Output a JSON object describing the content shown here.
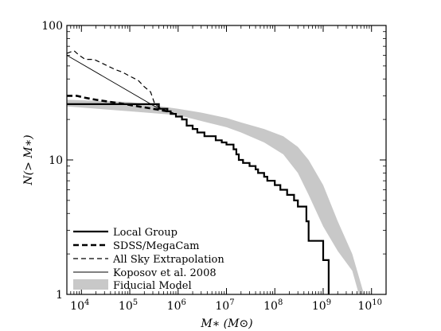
{
  "chart_data": {
    "type": "line",
    "title": "",
    "xlabel": "M∗ (M⊙)",
    "ylabel": "N(> M∗)",
    "xscale": "log",
    "yscale": "log",
    "xlim": [
      5000,
      20000000000
    ],
    "ylim": [
      1,
      100
    ],
    "grid": false,
    "legend_position": "bottom-left",
    "x_ticks": [
      {
        "value": 10000,
        "base": "10",
        "exp": "4"
      },
      {
        "value": 100000,
        "base": "10",
        "exp": "5"
      },
      {
        "value": 1000000,
        "base": "10",
        "exp": "6"
      },
      {
        "value": 10000000,
        "base": "10",
        "exp": "7"
      },
      {
        "value": 100000000,
        "base": "10",
        "exp": "8"
      },
      {
        "value": 1000000000,
        "base": "10",
        "exp": "9"
      },
      {
        "value": 10000000000,
        "base": "10",
        "exp": "10"
      }
    ],
    "y_ticks": [
      {
        "value": 1,
        "label": "1"
      },
      {
        "value": 10,
        "label": "10"
      },
      {
        "value": 100,
        "label": "100"
      }
    ],
    "series": [
      {
        "name": "Local Group",
        "style": "solid-thick",
        "color": "#000000",
        "points": [
          [
            5000,
            26
          ],
          [
            400000,
            24
          ],
          [
            600000,
            23
          ],
          [
            700000,
            22
          ],
          [
            900000,
            21
          ],
          [
            1200000,
            20
          ],
          [
            1500000,
            18
          ],
          [
            2000000,
            17
          ],
          [
            2500000,
            16
          ],
          [
            3500000,
            15
          ],
          [
            6000000,
            14
          ],
          [
            8000000,
            13.5
          ],
          [
            10000000,
            13
          ],
          [
            14000000,
            12
          ],
          [
            16000000,
            11
          ],
          [
            18000000,
            10
          ],
          [
            22000000,
            9.5
          ],
          [
            30000000,
            9
          ],
          [
            40000000,
            8.5
          ],
          [
            45000000,
            8
          ],
          [
            60000000,
            7.5
          ],
          [
            70000000,
            7
          ],
          [
            100000000,
            6.5
          ],
          [
            130000000,
            6
          ],
          [
            180000000,
            5.5
          ],
          [
            250000000,
            5
          ],
          [
            300000000,
            4.5
          ],
          [
            400000000,
            4.5
          ],
          [
            450000000,
            3.5
          ],
          [
            500000000,
            2.5
          ],
          [
            900000000,
            2.5
          ],
          [
            1000000000,
            1.8
          ],
          [
            1300000000,
            1.8
          ],
          [
            1300000000,
            1
          ]
        ]
      },
      {
        "name": "SDSS/MegaCam",
        "style": "dashed-thick",
        "color": "#000000",
        "points": [
          [
            5000,
            30
          ],
          [
            8000,
            30
          ],
          [
            12000,
            29
          ],
          [
            20000,
            28
          ],
          [
            40000,
            27
          ],
          [
            80000,
            26
          ],
          [
            150000,
            25
          ],
          [
            300000,
            24
          ],
          [
            600000,
            23
          ],
          [
            800000,
            22
          ]
        ]
      },
      {
        "name": "All Sky Extrapolation",
        "style": "dashed-thin",
        "color": "#000000",
        "points": [
          [
            5000,
            62
          ],
          [
            7000,
            65
          ],
          [
            9000,
            60
          ],
          [
            12000,
            56
          ],
          [
            18000,
            56
          ],
          [
            25000,
            53
          ],
          [
            35000,
            50
          ],
          [
            50000,
            47
          ],
          [
            70000,
            45
          ],
          [
            100000,
            42
          ],
          [
            150000,
            39
          ],
          [
            200000,
            35
          ],
          [
            270000,
            32
          ],
          [
            330000,
            26
          ],
          [
            450000,
            24
          ],
          [
            800000,
            22
          ]
        ]
      },
      {
        "name": "Koposov et al. 2008",
        "style": "solid-thin",
        "color": "#000000",
        "points": [
          [
            5000,
            60
          ],
          [
            400000,
            24
          ]
        ]
      },
      {
        "name": "Fiducial Model",
        "style": "band",
        "color": "#c8c8c8",
        "points_upper": [
          [
            5000,
            28
          ],
          [
            100000,
            27
          ],
          [
            1000000,
            24
          ],
          [
            3000000,
            22.5
          ],
          [
            10000000,
            20.5
          ],
          [
            20000000,
            19
          ],
          [
            60000000,
            17
          ],
          [
            150000000,
            15
          ],
          [
            300000000,
            12.5
          ],
          [
            500000000,
            10
          ],
          [
            1000000000,
            6.5
          ],
          [
            2000000000,
            3.5
          ],
          [
            4000000000,
            2
          ],
          [
            7000000000,
            1
          ]
        ],
        "points_lower": [
          [
            5000,
            25
          ],
          [
            100000,
            23
          ],
          [
            1000000,
            21.5
          ],
          [
            3000000,
            19.5
          ],
          [
            10000000,
            17.5
          ],
          [
            20000000,
            16
          ],
          [
            60000000,
            13.5
          ],
          [
            150000000,
            11
          ],
          [
            300000000,
            8
          ],
          [
            500000000,
            5.5
          ],
          [
            1000000000,
            3.2
          ],
          [
            2000000000,
            2.1
          ],
          [
            4000000000,
            1.5
          ],
          [
            5500000000,
            1
          ]
        ]
      }
    ]
  }
}
